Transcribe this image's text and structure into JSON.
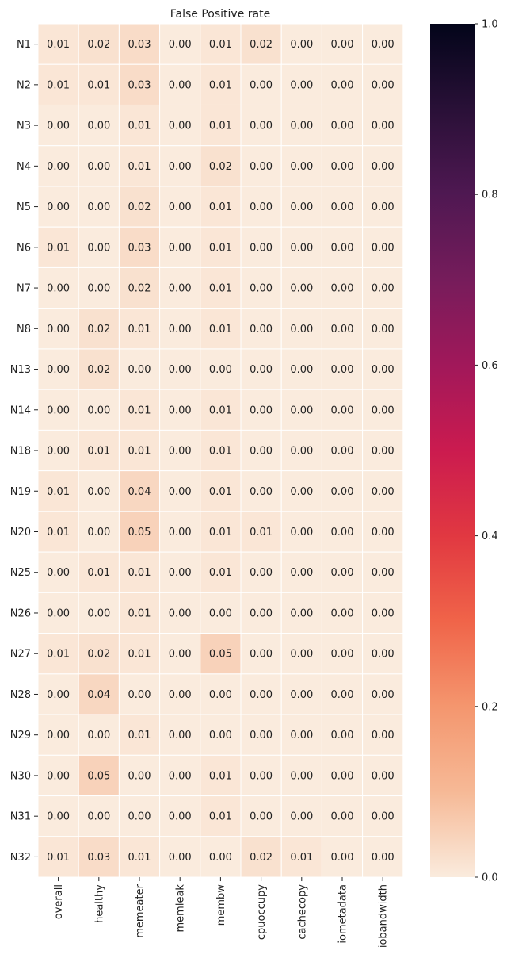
{
  "chart_data": {
    "type": "heatmap",
    "title": "False Positive rate",
    "xlabel": "",
    "ylabel": "",
    "columns": [
      "overall",
      "healthy",
      "memeater",
      "memleak",
      "membw",
      "cpuoccupy",
      "cachecopy",
      "iometadata",
      "iobandwidth"
    ],
    "rows": [
      "N1",
      "N2",
      "N3",
      "N4",
      "N5",
      "N6",
      "N7",
      "N8",
      "N13",
      "N14",
      "N18",
      "N19",
      "N20",
      "N25",
      "N26",
      "N27",
      "N28",
      "N29",
      "N30",
      "N31",
      "N32"
    ],
    "values": [
      [
        0.01,
        0.02,
        0.03,
        0.0,
        0.01,
        0.02,
        0.0,
        0.0,
        0.0
      ],
      [
        0.01,
        0.01,
        0.03,
        0.0,
        0.01,
        0.0,
        0.0,
        0.0,
        0.0
      ],
      [
        0.0,
        0.0,
        0.01,
        0.0,
        0.01,
        0.0,
        0.0,
        0.0,
        0.0
      ],
      [
        0.0,
        0.0,
        0.01,
        0.0,
        0.02,
        0.0,
        0.0,
        0.0,
        0.0
      ],
      [
        0.0,
        0.0,
        0.02,
        0.0,
        0.01,
        0.0,
        0.0,
        0.0,
        0.0
      ],
      [
        0.01,
        0.0,
        0.03,
        0.0,
        0.01,
        0.0,
        0.0,
        0.0,
        0.0
      ],
      [
        0.0,
        0.0,
        0.02,
        0.0,
        0.01,
        0.0,
        0.0,
        0.0,
        0.0
      ],
      [
        0.0,
        0.02,
        0.01,
        0.0,
        0.01,
        0.0,
        0.0,
        0.0,
        0.0
      ],
      [
        0.0,
        0.02,
        0.0,
        0.0,
        0.0,
        0.0,
        0.0,
        0.0,
        0.0
      ],
      [
        0.0,
        0.0,
        0.01,
        0.0,
        0.01,
        0.0,
        0.0,
        0.0,
        0.0
      ],
      [
        0.0,
        0.01,
        0.01,
        0.0,
        0.01,
        0.0,
        0.0,
        0.0,
        0.0
      ],
      [
        0.01,
        0.0,
        0.04,
        0.0,
        0.01,
        0.0,
        0.0,
        0.0,
        0.0
      ],
      [
        0.01,
        0.0,
        0.05,
        0.0,
        0.01,
        0.01,
        0.0,
        0.0,
        0.0
      ],
      [
        0.0,
        0.01,
        0.01,
        0.0,
        0.01,
        0.0,
        0.0,
        0.0,
        0.0
      ],
      [
        0.0,
        0.0,
        0.01,
        0.0,
        0.0,
        0.0,
        0.0,
        0.0,
        0.0
      ],
      [
        0.01,
        0.02,
        0.01,
        0.0,
        0.05,
        0.0,
        0.0,
        0.0,
        0.0
      ],
      [
        0.0,
        0.04,
        0.0,
        0.0,
        0.0,
        0.0,
        0.0,
        0.0,
        0.0
      ],
      [
        0.0,
        0.0,
        0.01,
        0.0,
        0.0,
        0.0,
        0.0,
        0.0,
        0.0
      ],
      [
        0.0,
        0.05,
        0.0,
        0.0,
        0.01,
        0.0,
        0.0,
        0.0,
        0.0
      ],
      [
        0.0,
        0.0,
        0.0,
        0.0,
        0.01,
        0.0,
        0.0,
        0.0,
        0.0
      ],
      [
        0.01,
        0.03,
        0.01,
        0.0,
        0.0,
        0.02,
        0.01,
        0.0,
        0.0
      ]
    ],
    "value_format": "0.00",
    "colorbar": {
      "range": [
        0.0,
        1.0
      ],
      "ticks": [
        0.0,
        0.2,
        0.4,
        0.6,
        0.8,
        1.0
      ],
      "tick_labels": [
        "0.0",
        "0.2",
        "0.4",
        "0.6",
        "0.8",
        "1.0"
      ],
      "colormap": "rocket_r",
      "position": "right"
    },
    "cell_border_color": "#ffffff",
    "grid": false
  }
}
